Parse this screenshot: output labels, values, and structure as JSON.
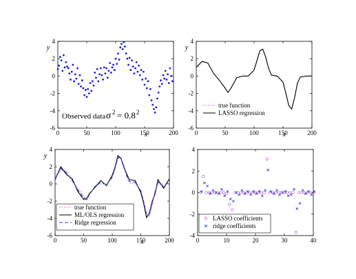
{
  "figure": {
    "panels": [
      {
        "id": "observed",
        "xlim": [
          0,
          200
        ],
        "ylim": [
          -6,
          4
        ],
        "xticks": [
          0,
          50,
          100,
          150,
          200
        ],
        "yticks": [
          -6,
          -4,
          -2,
          0,
          2,
          4
        ],
        "xlabel": "x",
        "ylabel": "y",
        "annotation": {
          "text": "Observed data",
          "symbol": "σ",
          "rest": "= 0.8",
          "exp": "2",
          "sym_exp": "2"
        }
      },
      {
        "id": "lasso",
        "xlim": [
          0,
          200
        ],
        "ylim": [
          -6,
          4
        ],
        "xticks": [
          0,
          50,
          100,
          150,
          200
        ],
        "yticks": [
          -6,
          -4,
          -2,
          0,
          2,
          4
        ],
        "xlabel": "x",
        "ylabel": "y",
        "legend": [
          "true function",
          "LASSO regression"
        ]
      },
      {
        "id": "ols_ridge",
        "xlim": [
          0,
          200
        ],
        "ylim": [
          -6,
          4
        ],
        "xticks": [
          0,
          50,
          100,
          150,
          200
        ],
        "yticks": [
          -6,
          -4,
          -2,
          0,
          2,
          4
        ],
        "xlabel": "x",
        "ylabel": "y",
        "legend": [
          "true function",
          "ML/OLS regression",
          "Ridge regression"
        ]
      },
      {
        "id": "coefficients",
        "xlim": [
          0,
          40
        ],
        "ylim": [
          -4,
          4
        ],
        "xticks": [
          0,
          10,
          20,
          30,
          40
        ],
        "yticks": [
          -4,
          -2,
          0,
          2,
          4
        ],
        "xlabel": "",
        "ylabel": "",
        "legend": [
          "LASSO coefficients",
          "ridge coefficients"
        ]
      }
    ]
  },
  "chart_data": [
    {
      "type": "scatter",
      "title": "",
      "xlabel": "x",
      "ylabel": "y",
      "xlim": [
        0,
        200
      ],
      "ylim": [
        -6,
        4
      ],
      "annotation": "Observed data σ² = 0.8²",
      "series": [
        {
          "color": "#1f1fd6",
          "x": [
            0,
            2,
            4,
            6,
            8,
            10,
            12,
            14,
            16,
            18,
            20,
            22,
            24,
            26,
            28,
            30,
            32,
            34,
            36,
            38,
            40,
            42,
            44,
            46,
            48,
            50,
            52,
            54,
            56,
            58,
            60,
            62,
            64,
            66,
            68,
            70,
            72,
            74,
            76,
            78,
            80,
            82,
            84,
            86,
            88,
            90,
            92,
            94,
            96,
            98,
            100,
            102,
            104,
            106,
            108,
            110,
            112,
            114,
            116,
            118,
            120,
            122,
            124,
            126,
            128,
            130,
            132,
            134,
            136,
            138,
            140,
            142,
            144,
            146,
            148,
            150,
            152,
            154,
            156,
            158,
            160,
            162,
            164,
            166,
            168,
            170,
            172,
            174,
            176,
            178,
            180,
            182,
            184,
            186,
            188,
            190,
            192,
            194,
            196,
            198
          ],
          "y": [
            0.8,
            1.2,
            2.2,
            1.8,
            0.6,
            2.4,
            1.0,
            1.6,
            1.1,
            0.9,
            0.3,
            -0.4,
            0.5,
            1.3,
            -0.6,
            0.2,
            -0.3,
            0.9,
            -0.9,
            0.1,
            -1.2,
            -0.5,
            -1.4,
            -2.2,
            -1.6,
            -2.4,
            -1.5,
            -2.0,
            -0.8,
            -1.7,
            -0.6,
            -1.1,
            0.4,
            -0.2,
            0.8,
            -0.6,
            0.2,
            0.9,
            0.1,
            -0.4,
            1.0,
            0.3,
            0.9,
            -0.2,
            0.6,
            1.5,
            0.4,
            1.0,
            1.3,
            0.7,
            2.0,
            1.4,
            2.6,
            1.9,
            3.3,
            3.7,
            3.1,
            3.9,
            3.4,
            2.6,
            2.0,
            1.3,
            2.1,
            0.7,
            1.8,
            1.1,
            0.3,
            0.9,
            1.6,
            0.5,
            1.2,
            0.1,
            0.7,
            -0.4,
            0.5,
            -1.0,
            -0.3,
            -1.4,
            -0.6,
            -2.2,
            -1.5,
            -2.8,
            -3.3,
            -3.8,
            -4.2,
            -3.6,
            -2.6,
            -1.9,
            -1.2,
            -0.5,
            -0.9,
            0.1,
            -0.3,
            0.6,
            -0.4,
            0.2,
            -0.8,
            0.9,
            0.0,
            -0.6
          ]
        }
      ]
    },
    {
      "type": "line",
      "xlabel": "x",
      "ylabel": "y",
      "xlim": [
        0,
        200
      ],
      "ylim": [
        -6,
        4
      ],
      "x": [
        0,
        10,
        20,
        30,
        40,
        50,
        55,
        60,
        70,
        80,
        90,
        100,
        105,
        110,
        115,
        120,
        125,
        130,
        140,
        150,
        155,
        160,
        165,
        170,
        175,
        180,
        190,
        200
      ],
      "series": [
        {
          "name": "true function",
          "style": "dotted",
          "color": "#c060c8",
          "y": [
            0.9,
            1.6,
            1.5,
            0.3,
            -0.5,
            -1.4,
            -1.9,
            -1.4,
            -0.2,
            0.0,
            0.0,
            0.7,
            1.8,
            2.9,
            3.1,
            2.2,
            0.9,
            0.1,
            0.0,
            -0.7,
            -2.0,
            -3.4,
            -3.8,
            -2.5,
            -0.8,
            -0.1,
            0.0,
            0.0
          ]
        },
        {
          "name": "LASSO regression",
          "style": "solid",
          "color": "#000000",
          "y": [
            1.0,
            1.7,
            1.5,
            0.3,
            -0.5,
            -1.4,
            -1.9,
            -1.4,
            -0.2,
            0.0,
            0.0,
            0.7,
            1.8,
            2.9,
            3.1,
            2.2,
            0.9,
            0.1,
            0.0,
            -0.7,
            -2.0,
            -3.4,
            -3.8,
            -2.5,
            -0.8,
            -0.1,
            0.0,
            0.0
          ]
        }
      ]
    },
    {
      "type": "line",
      "xlabel": "x",
      "ylabel": "y",
      "xlim": [
        0,
        200
      ],
      "ylim": [
        -6,
        4
      ],
      "x": [
        0,
        10,
        20,
        30,
        40,
        50,
        55,
        60,
        70,
        80,
        90,
        100,
        105,
        110,
        115,
        120,
        125,
        130,
        140,
        150,
        155,
        160,
        165,
        170,
        175,
        180,
        190,
        200
      ],
      "series": [
        {
          "name": "true function",
          "style": "dotted",
          "color": "#c060c8",
          "y": [
            0.9,
            1.6,
            1.5,
            0.3,
            -0.5,
            -1.4,
            -1.9,
            -1.4,
            -0.2,
            0.0,
            0.0,
            0.7,
            1.8,
            2.9,
            3.1,
            2.2,
            0.9,
            0.1,
            0.0,
            -0.7,
            -2.0,
            -3.4,
            -3.8,
            -2.5,
            -0.8,
            -0.1,
            0.0,
            0.0
          ]
        },
        {
          "name": "ML/OLS regression",
          "style": "solid",
          "color": "#000000",
          "y": [
            0.5,
            2.0,
            1.1,
            0.6,
            -0.9,
            -1.8,
            -1.7,
            -1.1,
            -0.4,
            0.4,
            -0.2,
            1.0,
            2.0,
            3.3,
            3.0,
            2.0,
            1.2,
            0.5,
            0.4,
            -1.0,
            -2.3,
            -3.9,
            -3.4,
            -2.0,
            -1.1,
            0.5,
            -0.5,
            0.6
          ]
        },
        {
          "name": "Ridge regression",
          "style": "dashed",
          "color": "#2a3fd6",
          "y": [
            0.6,
            1.8,
            1.3,
            0.4,
            -0.7,
            -1.6,
            -1.8,
            -1.2,
            -0.3,
            0.2,
            -0.1,
            0.8,
            1.9,
            3.1,
            3.0,
            2.1,
            1.0,
            0.3,
            0.2,
            -0.8,
            -2.1,
            -3.6,
            -3.5,
            -2.2,
            -0.9,
            0.2,
            -0.3,
            0.3
          ]
        }
      ]
    },
    {
      "type": "scatter",
      "xlabel": "",
      "ylabel": "",
      "xlim": [
        0,
        40
      ],
      "ylim": [
        -4,
        4
      ],
      "series": [
        {
          "name": "LASSO coefficients",
          "marker": "circle",
          "color": "#c060c8",
          "x": [
            1,
            2,
            3,
            4,
            5,
            6,
            7,
            8,
            9,
            10,
            11,
            12,
            13,
            14,
            15,
            16,
            17,
            18,
            19,
            20,
            21,
            22,
            23,
            24,
            25,
            26,
            27,
            28,
            29,
            30,
            31,
            32,
            33,
            34,
            35,
            36,
            37,
            38,
            39,
            40
          ],
          "y": [
            0,
            1.5,
            0,
            0,
            0,
            0,
            0,
            0,
            0,
            -0.1,
            -1.1,
            -1.6,
            0,
            0,
            0,
            0,
            0,
            0,
            0,
            0,
            0,
            0,
            0,
            3.1,
            0,
            0,
            0,
            0,
            0,
            0,
            0,
            0,
            0,
            -3.7,
            0,
            0,
            0,
            0,
            0,
            0
          ]
        },
        {
          "name": "ridge coefficients",
          "marker": "x",
          "color": "#2a3fd6",
          "x": [
            1,
            2,
            3,
            4,
            5,
            6,
            7,
            8,
            9,
            10,
            11,
            12,
            13,
            14,
            15,
            16,
            17,
            18,
            19,
            20,
            21,
            22,
            23,
            24,
            25,
            26,
            27,
            28,
            29,
            30,
            31,
            32,
            33,
            34,
            35,
            36,
            37,
            38,
            39,
            40
          ],
          "y": [
            0.1,
            0.9,
            0.6,
            -0.1,
            0.2,
            0.0,
            -0.1,
            0.3,
            -0.3,
            0.1,
            -0.6,
            -0.8,
            0.0,
            -0.2,
            0.2,
            -0.1,
            0.1,
            -0.2,
            0.1,
            -0.1,
            0.1,
            -0.3,
            0.2,
            2.1,
            0.1,
            -0.1,
            0.2,
            -0.2,
            0.0,
            0.1,
            -0.3,
            -0.2,
            0.3,
            -1.5,
            -1.0,
            0.2,
            -0.1,
            0.1,
            -0.2,
            0.1
          ]
        }
      ]
    }
  ]
}
